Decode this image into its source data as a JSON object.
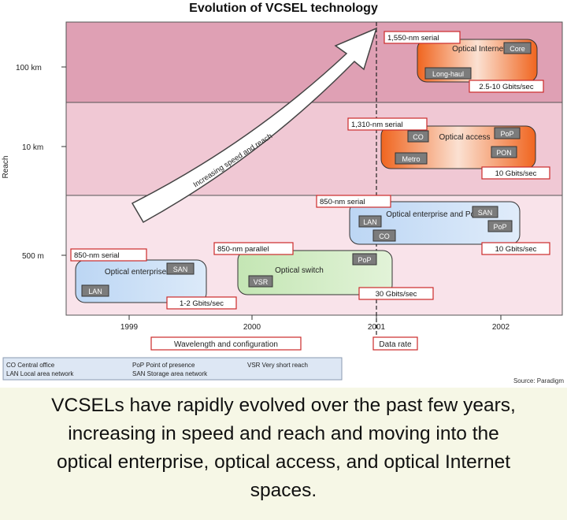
{
  "title": "Evolution of VCSEL technology",
  "y_axis": {
    "label": "Reach",
    "ticks": [
      "100 km",
      "10 km",
      "500 m"
    ]
  },
  "x_axis": {
    "ticks": [
      "1999",
      "2000",
      "2001",
      "2002"
    ],
    "label_left": "Wavelength and configuration",
    "label_right": "Data rate"
  },
  "arrow_label": "Increasing speed and reach",
  "groups": [
    {
      "id": "lan",
      "wavelength": "850-nm serial",
      "title": "Optical enterprise",
      "tags": [
        "SAN",
        "LAN"
      ],
      "rate": "1-2 Gbits/sec"
    },
    {
      "id": "switch",
      "wavelength": "850-nm parallel",
      "title": "Optical switch",
      "tags": [
        "PoP",
        "VSR"
      ],
      "rate": "30 Gbits/sec"
    },
    {
      "id": "enterprise",
      "wavelength": "850-nm serial",
      "title": "Optical enterprise and PoP",
      "tags": [
        "SAN",
        "LAN",
        "CO",
        "PoP"
      ],
      "rate": "10 Gbits/sec"
    },
    {
      "id": "access",
      "wavelength": "1,310-nm serial",
      "title": "Optical access",
      "tags": [
        "CO",
        "PoP",
        "Metro",
        "PON"
      ],
      "rate": "10 Gbits/sec"
    },
    {
      "id": "internet",
      "wavelength": "1,550-nm serial",
      "title": "Optical Internet",
      "tags": [
        "Core",
        "Long-haul"
      ],
      "rate": "2.5-10 Gbits/sec"
    }
  ],
  "legend": {
    "col1": [
      "CO  Central office",
      "LAN  Local area network"
    ],
    "col2": [
      "PoP  Point of presence",
      "SAN  Storage area network"
    ],
    "col3": [
      "VSR  Very short reach"
    ]
  },
  "source": "Source: Paradigm",
  "caption": {
    "lines": [
      "VCSELs have rapidly evolved over the past few years,",
      "increasing in speed and reach and moving into the",
      "optical enterprise, optical access, and optical Internet",
      "spaces."
    ]
  },
  "colors": {
    "band_top": "#dfa0b4",
    "band_mid": "#f0c8d4",
    "band_low": "#f9e3ea",
    "box_blue": "#cfe2f8",
    "box_green": "#d2ecc4",
    "box_orange": "#f06a2a",
    "tag": "#7c7c7c",
    "label_border": "#cc2a2a"
  }
}
